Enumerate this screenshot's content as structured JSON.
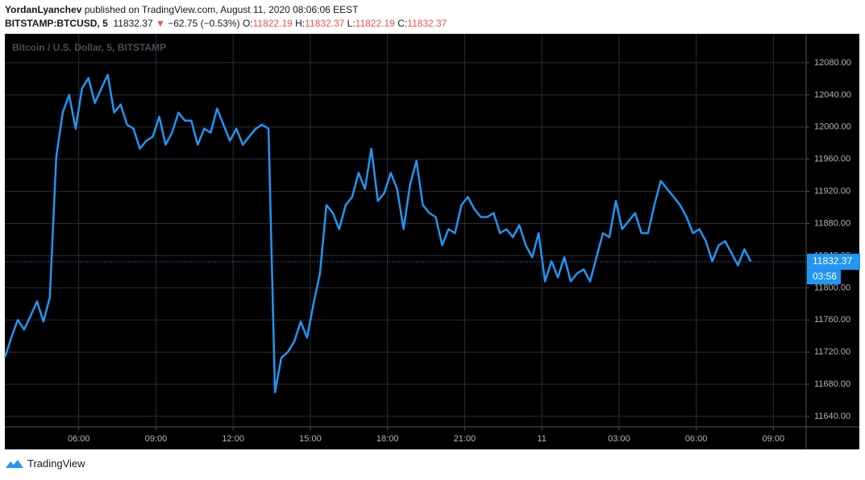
{
  "header": {
    "author": "YordanLyanchev",
    "published": "published on TradingView.com, August 11, 2020 08:06:06 EEST",
    "symbol": "BITSTAMP:BTCUSD, 5",
    "last": "11832.37",
    "arrow": "▼",
    "change": "−62.75 (−0.53%)",
    "o_label": "O:",
    "o": "11822.19",
    "h_label": "H:",
    "h": "11832.37",
    "l_label": "L:",
    "l": "11822.19",
    "c_label": "C:",
    "c": "11832.37"
  },
  "chart_data": {
    "type": "line",
    "title": "Bitcoin / U.S. Dollar, 5, BITSTAMP",
    "color": "#2196f3",
    "grid": true,
    "countdown": "03:56",
    "values": [
      11713,
      11738,
      11760,
      11748,
      11765,
      11783,
      11758,
      11788,
      11963,
      12018,
      12040,
      11998,
      12048,
      12061,
      12030,
      12048,
      12065,
      12018,
      12028,
      12003,
      11998,
      11973,
      11983,
      11988,
      12013,
      11978,
      11993,
      12018,
      12008,
      12008,
      11978,
      11998,
      11993,
      12023,
      12003,
      11983,
      11998,
      11978,
      11988,
      11998,
      12003,
      11998,
      11670,
      11713,
      11720,
      11733,
      11758,
      11738,
      11780,
      11818,
      11903,
      11893,
      11873,
      11903,
      11913,
      11943,
      11923,
      11973,
      11908,
      11918,
      11943,
      11923,
      11873,
      11928,
      11958,
      11903,
      11893,
      11888,
      11853,
      11873,
      11868,
      11903,
      11913,
      11898,
      11888,
      11888,
      11893,
      11868,
      11873,
      11863,
      11878,
      11853,
      11838,
      11868,
      11808,
      11833,
      11813,
      11838,
      11808,
      11818,
      11823,
      11808,
      11838,
      11868,
      11863,
      11908,
      11873,
      11883,
      11893,
      11868,
      11868,
      11903,
      11933,
      11923,
      11913,
      11903,
      11888,
      11868,
      11873,
      11858,
      11833,
      11853,
      11858,
      11843,
      11828,
      11848,
      11832.37
    ],
    "xlim": [
      0,
      124.6
    ],
    "xticks": [
      {
        "value": 11.5,
        "label": "06:00"
      },
      {
        "value": 23.5,
        "label": "09:00"
      },
      {
        "value": 35.5,
        "label": "12:00"
      },
      {
        "value": 47.5,
        "label": "15:00"
      },
      {
        "value": 59.5,
        "label": "18:00"
      },
      {
        "value": 71.5,
        "label": "21:00"
      },
      {
        "value": 83.5,
        "label": "11"
      },
      {
        "value": 95.5,
        "label": "03:00"
      },
      {
        "value": 107.5,
        "label": "06:00"
      },
      {
        "value": 119.5,
        "label": "09:00"
      }
    ],
    "ylim": [
      11627,
      12116
    ],
    "yticks": [
      {
        "value": 11640,
        "label": "11640.00"
      },
      {
        "value": 11680,
        "label": "11680.00"
      },
      {
        "value": 11720,
        "label": "11720.00"
      },
      {
        "value": 11760,
        "label": "11760.00"
      },
      {
        "value": 11800,
        "label": "11800.00"
      },
      {
        "value": 11840,
        "label": "11840.00"
      },
      {
        "value": 11880,
        "label": "11880.00"
      },
      {
        "value": 11920,
        "label": "11920.00"
      },
      {
        "value": 11960,
        "label": "11960.00"
      },
      {
        "value": 12000,
        "label": "12000.00"
      },
      {
        "value": 12040,
        "label": "12040.00"
      },
      {
        "value": 12080,
        "label": "12080.00"
      }
    ]
  },
  "footer": {
    "brand": "TradingView"
  }
}
